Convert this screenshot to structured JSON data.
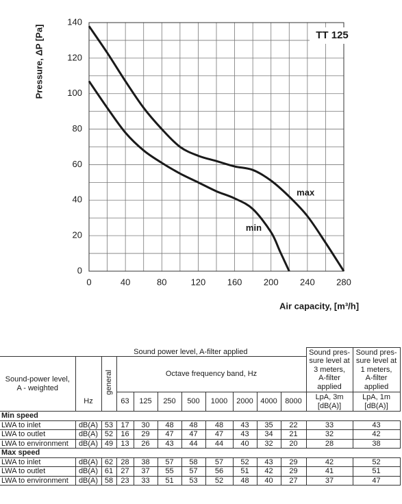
{
  "chart_data": {
    "type": "line",
    "title": "TT 125",
    "y_label": "Pressure, ΔP [Pa]",
    "x_label": "Air capacity, [m³/h]",
    "annotations": [
      {
        "text": "max",
        "x": 238,
        "y": 44
      },
      {
        "text": "min",
        "x": 181,
        "y": 24
      }
    ],
    "xlim": [
      0,
      280
    ],
    "ylim": [
      0,
      140
    ],
    "xticks": [
      0,
      40,
      80,
      120,
      160,
      200,
      240,
      280
    ],
    "yticks": [
      0,
      20,
      40,
      60,
      80,
      100,
      120,
      140
    ],
    "grid": true,
    "series": [
      {
        "name": "max",
        "color": "#1a1a1a",
        "x": [
          0,
          20,
          40,
          60,
          80,
          100,
          120,
          140,
          160,
          180,
          200,
          220,
          240,
          260,
          280
        ],
        "values": [
          138,
          123,
          107,
          92,
          80,
          70,
          65,
          62,
          59,
          57,
          51,
          42,
          31,
          16,
          0
        ]
      },
      {
        "name": "min",
        "color": "#1a1a1a",
        "x": [
          0,
          20,
          40,
          60,
          80,
          100,
          120,
          140,
          160,
          180,
          200,
          210,
          220
        ],
        "values": [
          107,
          92,
          78,
          68,
          61,
          55,
          50,
          45,
          41,
          35,
          22,
          11,
          0
        ]
      }
    ]
  },
  "table": {
    "header": {
      "group_title": "Sound power level, A-filter applied",
      "row_label": [
        "Sound-power level,",
        "A - weighted"
      ],
      "general": "general",
      "octave_title": "Octave frequency band, Hz",
      "unit_hz": "Hz",
      "bands": [
        63,
        125,
        250,
        500,
        1000,
        2000,
        4000,
        8000
      ],
      "lpa3_title": [
        "Sound pres-",
        "sure level at",
        "3 meters,",
        "A-filter",
        "applied"
      ],
      "lpa1_title": [
        "Sound pres-",
        "sure level at",
        "1 meters,",
        "A-filter",
        "applied"
      ],
      "lpa3_unit": [
        "LpA, 3m",
        "[dB(A)]"
      ],
      "lpa1_unit": [
        "LpA, 1m",
        "[dB(A)]"
      ]
    },
    "sections": [
      {
        "title": "Min speed",
        "rows": [
          {
            "label": "LWA to inlet",
            "unit": "dB(A)",
            "general": 53,
            "bands": [
              17,
              30,
              48,
              48,
              48,
              43,
              35,
              22
            ],
            "lpa3": 33,
            "lpa1": 43
          },
          {
            "label": "LWA to outlet",
            "unit": "dB(A)",
            "general": 52,
            "bands": [
              16,
              29,
              47,
              47,
              47,
              43,
              34,
              21
            ],
            "lpa3": 32,
            "lpa1": 42
          },
          {
            "label": "LWA to environment",
            "unit": "dB(A)",
            "general": 49,
            "bands": [
              13,
              26,
              43,
              44,
              44,
              40,
              32,
              20
            ],
            "lpa3": 28,
            "lpa1": 38
          }
        ]
      },
      {
        "title": "Max speed",
        "rows": [
          {
            "label": "LWA to inlet",
            "unit": "dB(A)",
            "general": 62,
            "bands": [
              28,
              38,
              57,
              58,
              57,
              52,
              43,
              29
            ],
            "lpa3": 42,
            "lpa1": 52
          },
          {
            "label": "LWA to outlet",
            "unit": "dB(A)",
            "general": 61,
            "bands": [
              27,
              37,
              55,
              57,
              56,
              51,
              42,
              29
            ],
            "lpa3": 41,
            "lpa1": 51
          },
          {
            "label": "LWA to environment",
            "unit": "dB(A)",
            "general": 58,
            "bands": [
              23,
              33,
              51,
              53,
              52,
              48,
              40,
              27
            ],
            "lpa3": 37,
            "lpa1": 47
          }
        ]
      }
    ]
  }
}
